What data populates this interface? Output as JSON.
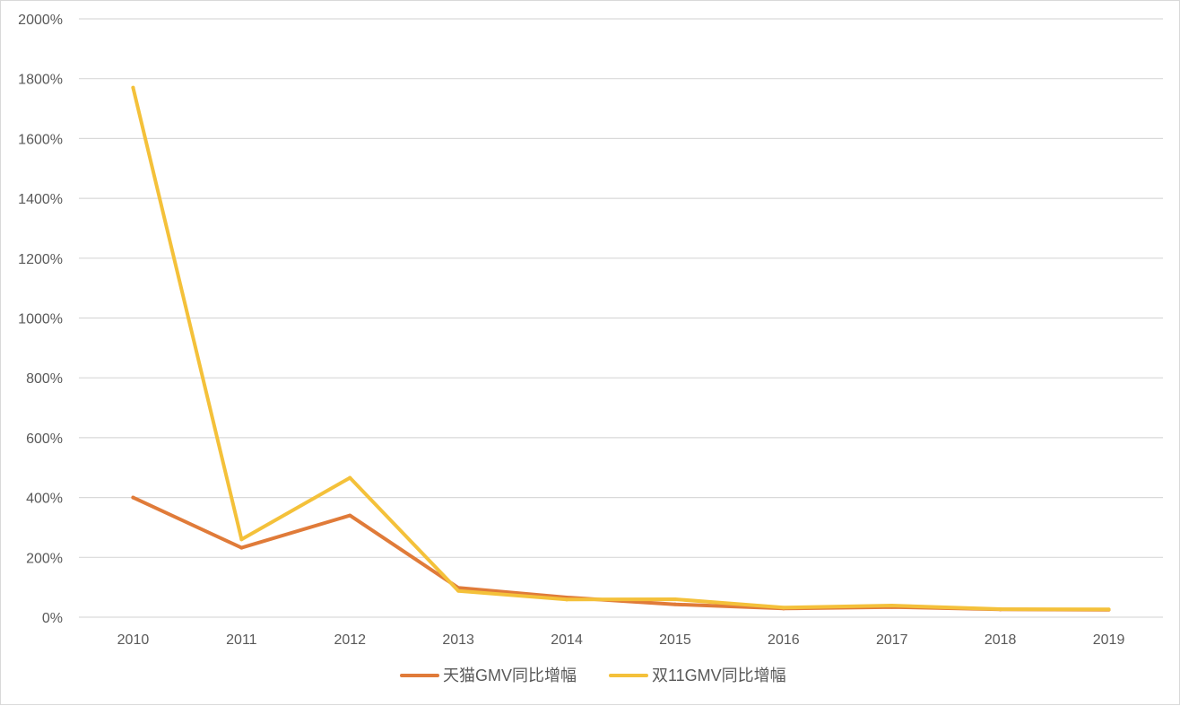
{
  "chart_data": {
    "type": "line",
    "title": "",
    "xlabel": "",
    "ylabel": "",
    "categories": [
      "2010",
      "2011",
      "2012",
      "2013",
      "2014",
      "2015",
      "2016",
      "2017",
      "2018",
      "2019"
    ],
    "ylim": [
      0,
      2000
    ],
    "y_ticks": [
      0,
      200,
      400,
      600,
      800,
      1000,
      1200,
      1400,
      1600,
      1800,
      2000
    ],
    "y_tick_labels": [
      "0%",
      "200%",
      "400%",
      "600%",
      "800%",
      "1000%",
      "1200%",
      "1400%",
      "1600%",
      "1800%",
      "2000%"
    ],
    "grid": true,
    "legend_position": "bottom",
    "series": [
      {
        "name": "天猫GMV同比增幅",
        "color": "#E07B39",
        "values": [
          400,
          232,
          340,
          98,
          66,
          43,
          29,
          34,
          26,
          25
        ]
      },
      {
        "name": "双11GMV同比增幅",
        "color": "#F4C13A",
        "values": [
          1770,
          260,
          466,
          88,
          59,
          60,
          32,
          39,
          27,
          26
        ]
      }
    ]
  }
}
